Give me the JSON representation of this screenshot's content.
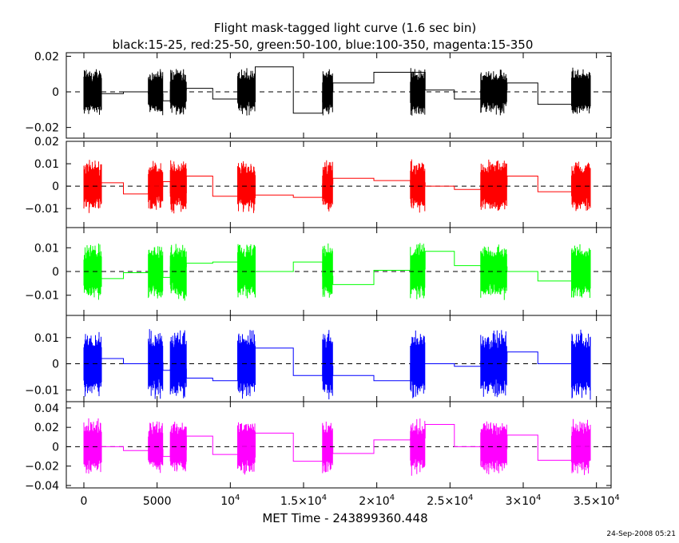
{
  "chart_data": {
    "type": "line",
    "title": "Flight mask-tagged light curve (1.6 sec bin)",
    "subtitle": "black:15-25, red:25-50, green:50-100, blue:100-350, magenta:15-350",
    "xlabel": "MET Time - 243899360.448",
    "timestamp": "24-Sep-2008 05:21",
    "xlim": [
      -1200,
      36000
    ],
    "x_ticks": [
      {
        "v": 0,
        "label": "0",
        "sup": ""
      },
      {
        "v": 5000,
        "label": "5000",
        "sup": ""
      },
      {
        "v": 10000,
        "label": "10",
        "sup": "4"
      },
      {
        "v": 15000,
        "label": "1.5×10",
        "sup": "4"
      },
      {
        "v": 20000,
        "label": "2×10",
        "sup": "4"
      },
      {
        "v": 25000,
        "label": "2.5×10",
        "sup": "4"
      },
      {
        "v": 30000,
        "label": "3×10",
        "sup": "4"
      },
      {
        "v": 35000,
        "label": "3.5×10",
        "sup": "4"
      }
    ],
    "segments": [
      [
        0,
        1200
      ],
      [
        4400,
        5400
      ],
      [
        5900,
        7000
      ],
      [
        10500,
        11700
      ],
      [
        16300,
        17000
      ],
      [
        22300,
        23300
      ],
      [
        27100,
        28900
      ],
      [
        33300,
        34600
      ]
    ],
    "panels": [
      {
        "name": "black:15-25",
        "color": "#000000",
        "ylim": [
          -0.026,
          0.022
        ],
        "yticks": [
          0.02,
          0,
          -0.02
        ],
        "ytick_labels": [
          "0.02",
          "0",
          "−0.02"
        ],
        "amp": 0.014,
        "binned": [
          [
            0,
            1200,
            -0.001
          ],
          [
            1200,
            2700,
            -0.001
          ],
          [
            2700,
            4400,
            0
          ],
          [
            4400,
            5400,
            -0.001
          ],
          [
            5400,
            5900,
            -0.005
          ],
          [
            5900,
            7000,
            0.001
          ],
          [
            7000,
            8800,
            0.002
          ],
          [
            8800,
            10500,
            -0.004
          ],
          [
            10500,
            11700,
            0.001
          ],
          [
            11700,
            14300,
            0.014
          ],
          [
            14300,
            16300,
            -0.012
          ],
          [
            16300,
            17000,
            0
          ],
          [
            17000,
            19800,
            0.005
          ],
          [
            19800,
            22300,
            0.011
          ],
          [
            22300,
            23300,
            0.011
          ],
          [
            23300,
            25300,
            0.001
          ],
          [
            25300,
            27100,
            -0.004
          ],
          [
            27100,
            28900,
            0.001
          ],
          [
            28900,
            31000,
            0.005
          ],
          [
            31000,
            33300,
            -0.007
          ],
          [
            33300,
            34600,
            -0.002
          ]
        ]
      },
      {
        "name": "red:25-50",
        "color": "#ff0000",
        "ylim": [
          -0.0185,
          0.02
        ],
        "yticks": [
          0.02,
          0.01,
          0,
          -0.01
        ],
        "ytick_labels": [
          "0.02",
          "0.01",
          "0",
          "−0.01"
        ],
        "amp": 0.0125,
        "binned": [
          [
            0,
            1200,
            0.001
          ],
          [
            1200,
            2700,
            0.0015
          ],
          [
            2700,
            4400,
            -0.0035
          ],
          [
            4400,
            5400,
            0
          ],
          [
            5400,
            5900,
            0.002
          ],
          [
            5900,
            7000,
            -0.003
          ],
          [
            7000,
            8800,
            0.0045
          ],
          [
            8800,
            10500,
            -0.0045
          ],
          [
            10500,
            11700,
            -0.004
          ],
          [
            11700,
            14300,
            -0.004
          ],
          [
            14300,
            16300,
            -0.005
          ],
          [
            16300,
            17000,
            0.001
          ],
          [
            17000,
            19800,
            0.0035
          ],
          [
            19800,
            22300,
            0.0025
          ],
          [
            22300,
            23300,
            0.0015
          ],
          [
            23300,
            25300,
            0
          ],
          [
            25300,
            27100,
            -0.0015
          ],
          [
            27100,
            28900,
            0.0005
          ],
          [
            28900,
            31000,
            0.0045
          ],
          [
            31000,
            33300,
            -0.0025
          ],
          [
            33300,
            34600,
            0.0015
          ]
        ]
      },
      {
        "name": "green:50-100",
        "color": "#00ff00",
        "ylim": [
          -0.0185,
          0.0185
        ],
        "yticks": [
          0.01,
          0,
          -0.01
        ],
        "ytick_labels": [
          "0.01",
          "0",
          "−0.01"
        ],
        "amp": 0.0125,
        "binned": [
          [
            0,
            1200,
            -0.003
          ],
          [
            1200,
            2700,
            -0.003
          ],
          [
            2700,
            4400,
            -0.0005
          ],
          [
            4400,
            5400,
            0
          ],
          [
            5400,
            5900,
            -0.0025
          ],
          [
            5900,
            7000,
            0.002
          ],
          [
            7000,
            8800,
            0.0035
          ],
          [
            8800,
            10500,
            0.004
          ],
          [
            10500,
            11700,
            0.0005
          ],
          [
            11700,
            14300,
            0
          ],
          [
            14300,
            16300,
            0.004
          ],
          [
            16300,
            17000,
            -0.002
          ],
          [
            17000,
            19800,
            -0.0055
          ],
          [
            19800,
            22300,
            0.0005
          ],
          [
            22300,
            23300,
            0.001
          ],
          [
            23300,
            25300,
            0.0085
          ],
          [
            25300,
            27100,
            0.0025
          ],
          [
            27100,
            28900,
            0.002
          ],
          [
            28900,
            31000,
            0
          ],
          [
            31000,
            33300,
            -0.004
          ],
          [
            33300,
            34600,
            0
          ]
        ]
      },
      {
        "name": "blue:100-350",
        "color": "#0000ff",
        "ylim": [
          -0.0145,
          0.0185
        ],
        "yticks": [
          0.01,
          0,
          -0.01
        ],
        "ytick_labels": [
          "0.01",
          "0",
          "−0.01"
        ],
        "amp": 0.014,
        "binned": [
          [
            0,
            1200,
            0.002
          ],
          [
            1200,
            2700,
            0.002
          ],
          [
            2700,
            4400,
            0
          ],
          [
            4400,
            5400,
            0.0005
          ],
          [
            5400,
            5900,
            -0.0025
          ],
          [
            5900,
            7000,
            -0.002
          ],
          [
            7000,
            8800,
            -0.0055
          ],
          [
            8800,
            10500,
            -0.0065
          ],
          [
            10500,
            11700,
            0.001
          ],
          [
            11700,
            14300,
            0.006
          ],
          [
            14300,
            16300,
            -0.0045
          ],
          [
            16300,
            17000,
            -0.001
          ],
          [
            17000,
            19800,
            -0.0045
          ],
          [
            19800,
            22300,
            -0.0065
          ],
          [
            22300,
            23300,
            0
          ],
          [
            23300,
            25300,
            0
          ],
          [
            25300,
            27100,
            -0.001
          ],
          [
            27100,
            28900,
            0.001
          ],
          [
            28900,
            31000,
            0.0045
          ],
          [
            31000,
            33300,
            0
          ],
          [
            33300,
            34600,
            0
          ]
        ]
      },
      {
        "name": "magenta:15-350",
        "color": "#ff00ff",
        "ylim": [
          -0.0425,
          0.0465
        ],
        "yticks": [
          0.04,
          0.02,
          0,
          -0.02,
          -0.04
        ],
        "ytick_labels": [
          "0.04",
          "0.02",
          "0",
          "−0.02",
          "−0.04"
        ],
        "amp": 0.03,
        "binned": [
          [
            0,
            1200,
            0.001
          ],
          [
            1200,
            2700,
            0
          ],
          [
            2700,
            4400,
            -0.004
          ],
          [
            4400,
            5400,
            -0.003
          ],
          [
            5400,
            5900,
            -0.01
          ],
          [
            5900,
            7000,
            -0.003
          ],
          [
            7000,
            8800,
            0.011
          ],
          [
            8800,
            10500,
            -0.008
          ],
          [
            10500,
            11700,
            0
          ],
          [
            11700,
            14300,
            0.014
          ],
          [
            14300,
            16300,
            -0.015
          ],
          [
            16300,
            17000,
            -0.001
          ],
          [
            17000,
            19800,
            -0.007
          ],
          [
            19800,
            22300,
            0.007
          ],
          [
            22300,
            23300,
            0.009
          ],
          [
            23300,
            25300,
            0.023
          ],
          [
            25300,
            27100,
            0
          ],
          [
            27100,
            28900,
            -0.002
          ],
          [
            28900,
            31000,
            0.012
          ],
          [
            31000,
            33300,
            -0.014
          ],
          [
            33300,
            34600,
            0
          ]
        ]
      }
    ]
  }
}
